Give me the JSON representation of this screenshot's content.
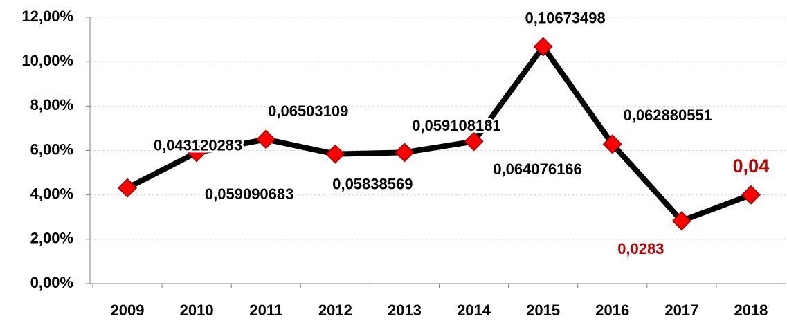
{
  "chart_data": {
    "type": "line",
    "categories": [
      "2009",
      "2010",
      "2011",
      "2012",
      "2013",
      "2014",
      "2015",
      "2016",
      "2017",
      "2018"
    ],
    "values": [
      4.3120283,
      5.9090683,
      6.503109,
      5.838569,
      5.9108181,
      6.4076166,
      10.673498,
      6.2880551,
      2.83,
      4
    ],
    "value_labels": [
      "0,043120283",
      "0,059090683",
      "0,06503109",
      "0,05838569",
      "0,059108181",
      "0,064076166",
      "0,10673498",
      "0,062880551",
      "0,0283",
      "0,04"
    ],
    "value_label_colors": [
      "#000000",
      "#000000",
      "#000000",
      "#000000",
      "#000000",
      "#000000",
      "#000000",
      "#000000",
      "#c00000",
      "#c00000"
    ],
    "color": "#000000",
    "marker_color": "#ff0000",
    "ylim": [
      0,
      12
    ],
    "yticks": [
      {
        "value": 0,
        "label": "0,00%"
      },
      {
        "value": 2,
        "label": "2,00%"
      },
      {
        "value": 4,
        "label": "4,00%"
      },
      {
        "value": 6,
        "label": "6,00%"
      },
      {
        "value": 8,
        "label": "8,00%"
      },
      {
        "value": 10,
        "label": "10,00%"
      },
      {
        "value": 12,
        "label": "12,00%"
      }
    ],
    "grid": true
  }
}
